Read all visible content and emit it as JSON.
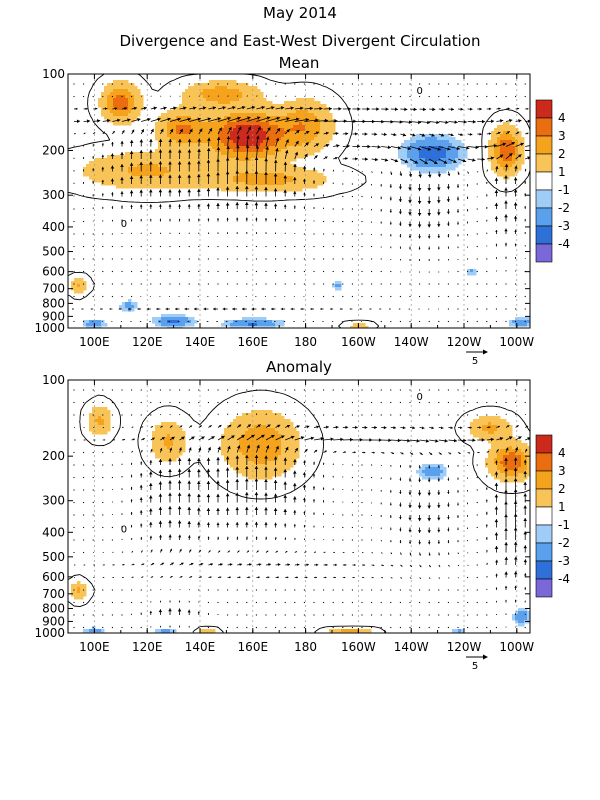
{
  "figure": {
    "title_line1": "May 2014",
    "title_line2": "Divergence and East-West Divergent Circulation"
  },
  "colors": {
    "levels": [
      "#7b68d8",
      "#2e6fd8",
      "#5aa0ec",
      "#a0cdf7",
      "#ffffff",
      "#f9c457",
      "#f5a31c",
      "#ea6e10",
      "#cc2a1c"
    ],
    "level_labels": [
      "-4",
      "-3",
      "-2",
      "-1",
      "1",
      "2",
      "3",
      "4"
    ],
    "contour": "#000000",
    "grid": "#999999"
  },
  "chart_data": [
    {
      "type": "heatmap",
      "title": "Mean",
      "x_ticks": [
        "100E",
        "120E",
        "140E",
        "160E",
        "180",
        "160W",
        "140W",
        "120W",
        "100W"
      ],
      "x_tick_lon": [
        100,
        120,
        140,
        160,
        180,
        200,
        220,
        240,
        260
      ],
      "x_range_lon": [
        90,
        265
      ],
      "y_ticks": [
        "100",
        "200",
        "300",
        "400",
        "500",
        "600",
        "700",
        "800",
        "900",
        "1000"
      ],
      "y_tick_hpa": [
        100,
        200,
        300,
        400,
        500,
        600,
        700,
        800,
        900,
        1000
      ],
      "y_range_hpa": [
        1000,
        100
      ],
      "y_scale": "log",
      "vector_reference": "5",
      "contour_labels": [
        "0"
      ],
      "features": [
        {
          "lon": 158,
          "p": 175,
          "value": 4.5,
          "w": 14,
          "h": 0.2
        },
        {
          "lon": 110,
          "p": 130,
          "value": 3.2,
          "w": 6,
          "h": 0.15
        },
        {
          "lon": 133,
          "p": 165,
          "value": 2.6,
          "w": 8,
          "h": 0.15
        },
        {
          "lon": 180,
          "p": 160,
          "value": 2.2,
          "w": 9,
          "h": 0.2
        },
        {
          "lon": 148,
          "p": 120,
          "value": 2.2,
          "w": 12,
          "h": 0.1
        },
        {
          "lon": 120,
          "p": 240,
          "value": 1.7,
          "w": 22,
          "h": 0.15
        },
        {
          "lon": 165,
          "p": 260,
          "value": 1.9,
          "w": 20,
          "h": 0.1
        },
        {
          "lon": 256,
          "p": 200,
          "value": 3.5,
          "w": 5,
          "h": 0.18
        },
        {
          "lon": 228,
          "p": 205,
          "value": -2.6,
          "w": 10,
          "h": 0.14
        },
        {
          "lon": 94,
          "p": 680,
          "value": 1.7,
          "w": 3,
          "h": 0.06
        },
        {
          "lon": 113,
          "p": 820,
          "value": -1.5,
          "w": 3,
          "h": 0.05
        },
        {
          "lon": 130,
          "p": 940,
          "value": -2.2,
          "w": 7,
          "h": 0.05
        },
        {
          "lon": 160,
          "p": 960,
          "value": -2.2,
          "w": 10,
          "h": 0.04
        },
        {
          "lon": 100,
          "p": 960,
          "value": -1.8,
          "w": 4,
          "h": 0.04
        },
        {
          "lon": 262,
          "p": 950,
          "value": -1.6,
          "w": 5,
          "h": 0.04
        },
        {
          "lon": 192,
          "p": 680,
          "value": -1.3,
          "w": 2,
          "h": 0.04
        },
        {
          "lon": 243,
          "p": 600,
          "value": -1.2,
          "w": 2,
          "h": 0.03
        },
        {
          "lon": 200,
          "p": 985,
          "value": 1.5,
          "w": 4,
          "h": 0.02
        }
      ],
      "winds": [
        {
          "lon": 158,
          "p": 240,
          "u": 0,
          "w": 3.5,
          "rlon": 22,
          "rp": 0.4
        },
        {
          "lon": 120,
          "p": 240,
          "u": 0,
          "w": 2.2,
          "rlon": 20,
          "rp": 0.4
        },
        {
          "lon": 256,
          "p": 300,
          "u": 0,
          "w": 2.2,
          "rlon": 7,
          "rp": 0.5
        },
        {
          "lon": 225,
          "p": 300,
          "u": 0,
          "w": -1.8,
          "rlon": 16,
          "rp": 0.5
        },
        {
          "lon": 175,
          "p": 150,
          "u": 3.5,
          "w": 0,
          "rlon": 90,
          "rp": 0.12
        },
        {
          "lon": 230,
          "p": 200,
          "u": 3,
          "w": 0,
          "rlon": 50,
          "rp": 0.12
        },
        {
          "lon": 150,
          "p": 850,
          "u": -1.2,
          "w": 0,
          "rlon": 60,
          "rp": 0.1
        }
      ]
    },
    {
      "type": "heatmap",
      "title": "Anomaly",
      "x_ticks": [
        "100E",
        "120E",
        "140E",
        "160E",
        "180",
        "160W",
        "140W",
        "120W",
        "100W"
      ],
      "x_tick_lon": [
        100,
        120,
        140,
        160,
        180,
        200,
        220,
        240,
        260
      ],
      "x_range_lon": [
        90,
        265
      ],
      "y_ticks": [
        "100",
        "200",
        "300",
        "400",
        "500",
        "600",
        "700",
        "800",
        "900",
        "1000"
      ],
      "y_tick_hpa": [
        100,
        200,
        300,
        400,
        500,
        600,
        700,
        800,
        900,
        1000
      ],
      "y_range_hpa": [
        1000,
        100
      ],
      "y_scale": "log",
      "vector_reference": "5",
      "contour_labels": [
        "0"
      ],
      "features": [
        {
          "lon": 163,
          "p": 180,
          "value": 2.4,
          "w": 12,
          "h": 0.25
        },
        {
          "lon": 128,
          "p": 175,
          "value": 1.7,
          "w": 6,
          "h": 0.17
        },
        {
          "lon": 102,
          "p": 145,
          "value": 1.7,
          "w": 4,
          "h": 0.12
        },
        {
          "lon": 258,
          "p": 210,
          "value": 3.4,
          "w": 7,
          "h": 0.14
        },
        {
          "lon": 250,
          "p": 155,
          "value": 1.8,
          "w": 7,
          "h": 0.1
        },
        {
          "lon": 228,
          "p": 230,
          "value": -1.8,
          "w": 5,
          "h": 0.07
        },
        {
          "lon": 94,
          "p": 680,
          "value": 1.7,
          "w": 3,
          "h": 0.07
        },
        {
          "lon": 262,
          "p": 860,
          "value": -1.8,
          "w": 3,
          "h": 0.07
        },
        {
          "lon": 143,
          "p": 985,
          "value": 1.5,
          "w": 3,
          "h": 0.02
        },
        {
          "lon": 197,
          "p": 985,
          "value": 2.2,
          "w": 7,
          "h": 0.02
        },
        {
          "lon": 100,
          "p": 980,
          "value": -1.4,
          "w": 4,
          "h": 0.03
        },
        {
          "lon": 127,
          "p": 970,
          "value": -1.3,
          "w": 4,
          "h": 0.02
        },
        {
          "lon": 238,
          "p": 985,
          "value": -1.2,
          "w": 3,
          "h": 0.02
        }
      ],
      "winds": [
        {
          "lon": 160,
          "p": 260,
          "u": 0,
          "w": 2.8,
          "rlon": 22,
          "rp": 0.45
        },
        {
          "lon": 128,
          "p": 300,
          "u": 0,
          "w": 2,
          "rlon": 14,
          "rp": 0.5
        },
        {
          "lon": 258,
          "p": 350,
          "u": 0,
          "w": 3.5,
          "rlon": 8,
          "rp": 0.6
        },
        {
          "lon": 225,
          "p": 320,
          "u": 0,
          "w": -1.5,
          "rlon": 15,
          "rp": 0.5
        },
        {
          "lon": 200,
          "p": 170,
          "u": 2.5,
          "w": 0,
          "rlon": 80,
          "rp": 0.12
        },
        {
          "lon": 130,
          "p": 850,
          "u": 0,
          "w": 1.6,
          "rlon": 12,
          "rp": 0.1
        },
        {
          "lon": 160,
          "p": 550,
          "u": 1.2,
          "w": 0,
          "rlon": 60,
          "rp": 0.15
        }
      ]
    }
  ]
}
